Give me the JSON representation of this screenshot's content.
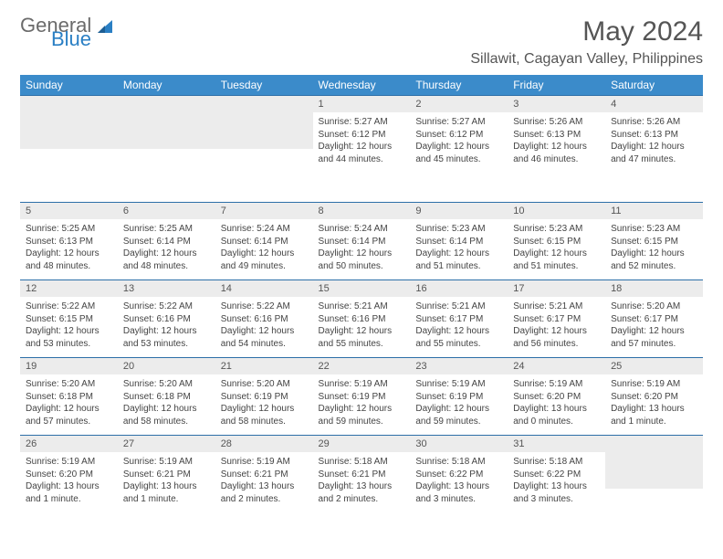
{
  "logo": {
    "word1": "General",
    "word2": "Blue"
  },
  "title": "May 2024",
  "subtitle": "Sillawit, Cagayan Valley, Philippines",
  "colors": {
    "header_bg": "#3b8bca",
    "header_text": "#ffffff",
    "row_border": "#2d6fa8",
    "daynum_bg": "#ececec",
    "logo_gray": "#6b6b6b",
    "logo_blue": "#2a7fc4"
  },
  "dayHeaders": [
    "Sunday",
    "Monday",
    "Tuesday",
    "Wednesday",
    "Thursday",
    "Friday",
    "Saturday"
  ],
  "weeks": [
    [
      {
        "n": "",
        "sunrise": "",
        "sunset": "",
        "daylight": ""
      },
      {
        "n": "",
        "sunrise": "",
        "sunset": "",
        "daylight": ""
      },
      {
        "n": "",
        "sunrise": "",
        "sunset": "",
        "daylight": ""
      },
      {
        "n": "1",
        "sunrise": "5:27 AM",
        "sunset": "6:12 PM",
        "daylight": "12 hours and 44 minutes."
      },
      {
        "n": "2",
        "sunrise": "5:27 AM",
        "sunset": "6:12 PM",
        "daylight": "12 hours and 45 minutes."
      },
      {
        "n": "3",
        "sunrise": "5:26 AM",
        "sunset": "6:13 PM",
        "daylight": "12 hours and 46 minutes."
      },
      {
        "n": "4",
        "sunrise": "5:26 AM",
        "sunset": "6:13 PM",
        "daylight": "12 hours and 47 minutes."
      }
    ],
    [
      {
        "n": "5",
        "sunrise": "5:25 AM",
        "sunset": "6:13 PM",
        "daylight": "12 hours and 48 minutes."
      },
      {
        "n": "6",
        "sunrise": "5:25 AM",
        "sunset": "6:14 PM",
        "daylight": "12 hours and 48 minutes."
      },
      {
        "n": "7",
        "sunrise": "5:24 AM",
        "sunset": "6:14 PM",
        "daylight": "12 hours and 49 minutes."
      },
      {
        "n": "8",
        "sunrise": "5:24 AM",
        "sunset": "6:14 PM",
        "daylight": "12 hours and 50 minutes."
      },
      {
        "n": "9",
        "sunrise": "5:23 AM",
        "sunset": "6:14 PM",
        "daylight": "12 hours and 51 minutes."
      },
      {
        "n": "10",
        "sunrise": "5:23 AM",
        "sunset": "6:15 PM",
        "daylight": "12 hours and 51 minutes."
      },
      {
        "n": "11",
        "sunrise": "5:23 AM",
        "sunset": "6:15 PM",
        "daylight": "12 hours and 52 minutes."
      }
    ],
    [
      {
        "n": "12",
        "sunrise": "5:22 AM",
        "sunset": "6:15 PM",
        "daylight": "12 hours and 53 minutes."
      },
      {
        "n": "13",
        "sunrise": "5:22 AM",
        "sunset": "6:16 PM",
        "daylight": "12 hours and 53 minutes."
      },
      {
        "n": "14",
        "sunrise": "5:22 AM",
        "sunset": "6:16 PM",
        "daylight": "12 hours and 54 minutes."
      },
      {
        "n": "15",
        "sunrise": "5:21 AM",
        "sunset": "6:16 PM",
        "daylight": "12 hours and 55 minutes."
      },
      {
        "n": "16",
        "sunrise": "5:21 AM",
        "sunset": "6:17 PM",
        "daylight": "12 hours and 55 minutes."
      },
      {
        "n": "17",
        "sunrise": "5:21 AM",
        "sunset": "6:17 PM",
        "daylight": "12 hours and 56 minutes."
      },
      {
        "n": "18",
        "sunrise": "5:20 AM",
        "sunset": "6:17 PM",
        "daylight": "12 hours and 57 minutes."
      }
    ],
    [
      {
        "n": "19",
        "sunrise": "5:20 AM",
        "sunset": "6:18 PM",
        "daylight": "12 hours and 57 minutes."
      },
      {
        "n": "20",
        "sunrise": "5:20 AM",
        "sunset": "6:18 PM",
        "daylight": "12 hours and 58 minutes."
      },
      {
        "n": "21",
        "sunrise": "5:20 AM",
        "sunset": "6:19 PM",
        "daylight": "12 hours and 58 minutes."
      },
      {
        "n": "22",
        "sunrise": "5:19 AM",
        "sunset": "6:19 PM",
        "daylight": "12 hours and 59 minutes."
      },
      {
        "n": "23",
        "sunrise": "5:19 AM",
        "sunset": "6:19 PM",
        "daylight": "12 hours and 59 minutes."
      },
      {
        "n": "24",
        "sunrise": "5:19 AM",
        "sunset": "6:20 PM",
        "daylight": "13 hours and 0 minutes."
      },
      {
        "n": "25",
        "sunrise": "5:19 AM",
        "sunset": "6:20 PM",
        "daylight": "13 hours and 1 minute."
      }
    ],
    [
      {
        "n": "26",
        "sunrise": "5:19 AM",
        "sunset": "6:20 PM",
        "daylight": "13 hours and 1 minute."
      },
      {
        "n": "27",
        "sunrise": "5:19 AM",
        "sunset": "6:21 PM",
        "daylight": "13 hours and 1 minute."
      },
      {
        "n": "28",
        "sunrise": "5:19 AM",
        "sunset": "6:21 PM",
        "daylight": "13 hours and 2 minutes."
      },
      {
        "n": "29",
        "sunrise": "5:18 AM",
        "sunset": "6:21 PM",
        "daylight": "13 hours and 2 minutes."
      },
      {
        "n": "30",
        "sunrise": "5:18 AM",
        "sunset": "6:22 PM",
        "daylight": "13 hours and 3 minutes."
      },
      {
        "n": "31",
        "sunrise": "5:18 AM",
        "sunset": "6:22 PM",
        "daylight": "13 hours and 3 minutes."
      },
      {
        "n": "",
        "sunrise": "",
        "sunset": "",
        "daylight": ""
      }
    ]
  ],
  "labels": {
    "sunrise": "Sunrise:",
    "sunset": "Sunset:",
    "daylight": "Daylight:"
  }
}
